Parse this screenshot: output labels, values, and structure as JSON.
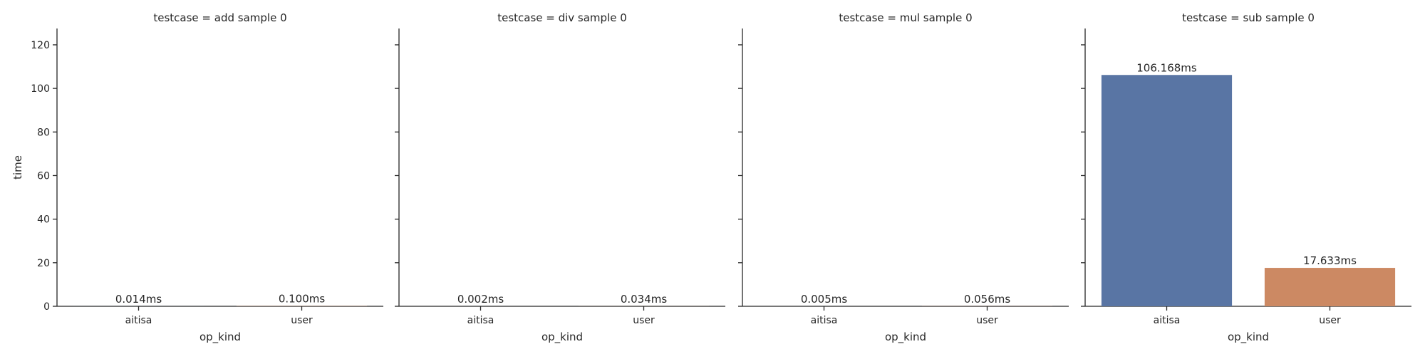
{
  "chart_data": {
    "type": "bar",
    "ylabel": "time",
    "xlabel": "op_kind",
    "ylim": [
      0,
      127.5
    ],
    "yticks": [
      0,
      20,
      40,
      60,
      80,
      100,
      120
    ],
    "categories": [
      "aitisa",
      "user"
    ],
    "colors": [
      "#5975a4",
      "#cc8963"
    ],
    "panels": [
      {
        "title": "testcase = add sample 0",
        "values": [
          0.014,
          0.1
        ],
        "labels": [
          "0.014ms",
          "0.100ms"
        ]
      },
      {
        "title": "testcase = div sample 0",
        "values": [
          0.002,
          0.034
        ],
        "labels": [
          "0.002ms",
          "0.034ms"
        ]
      },
      {
        "title": "testcase = mul sample 0",
        "values": [
          0.005,
          0.056
        ],
        "labels": [
          "0.005ms",
          "0.056ms"
        ]
      },
      {
        "title": "testcase = sub sample 0",
        "values": [
          106.168,
          17.633
        ],
        "labels": [
          "106.168ms",
          "17.633ms"
        ]
      }
    ]
  }
}
